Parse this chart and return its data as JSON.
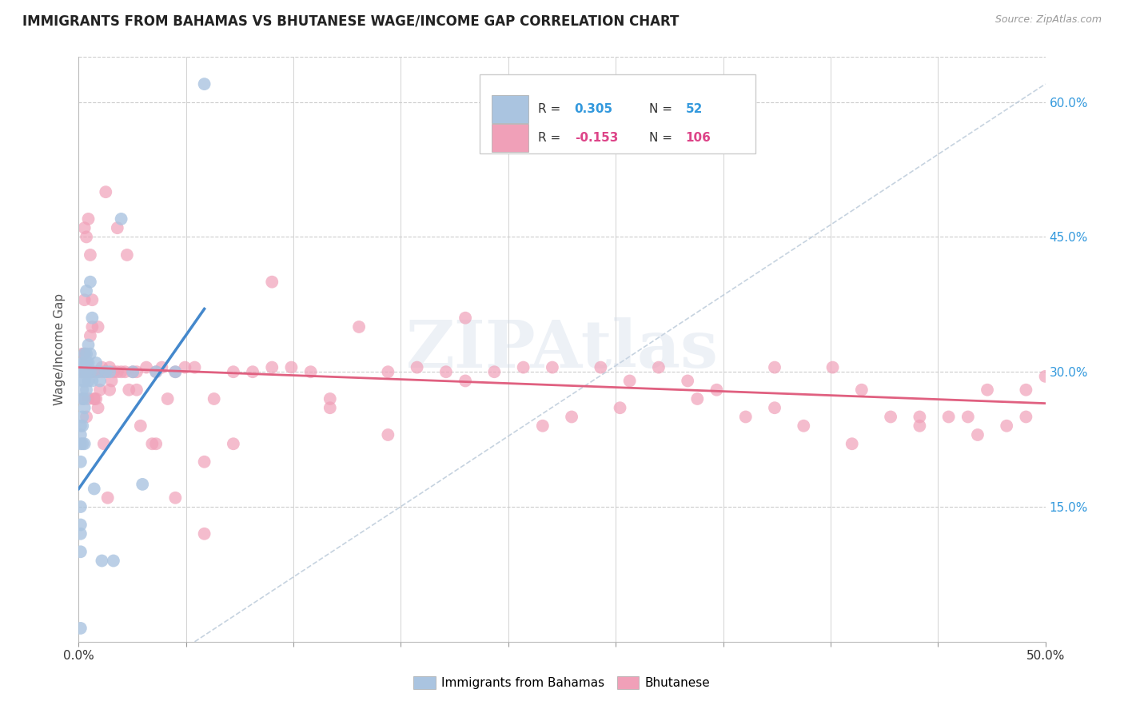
{
  "title": "IMMIGRANTS FROM BAHAMAS VS BHUTANESE WAGE/INCOME GAP CORRELATION CHART",
  "source": "Source: ZipAtlas.com",
  "ylabel": "Wage/Income Gap",
  "yticks": [
    "15.0%",
    "30.0%",
    "45.0%",
    "60.0%"
  ],
  "ytick_vals": [
    0.15,
    0.3,
    0.45,
    0.6
  ],
  "xlim": [
    0.0,
    0.5
  ],
  "ylim": [
    0.0,
    0.65
  ],
  "legend_label1": "Immigrants from Bahamas",
  "legend_label2": "Bhutanese",
  "R1": 0.305,
  "N1": 52,
  "R2": -0.153,
  "N2": 106,
  "color_blue": "#aac4e0",
  "color_pink": "#f0a0b8",
  "color_blue_text": "#3399dd",
  "color_pink_text": "#dd4488",
  "color_trendline_blue": "#4488cc",
  "color_trendline_pink": "#e06080",
  "watermark_color": "#ccd8e8"
}
